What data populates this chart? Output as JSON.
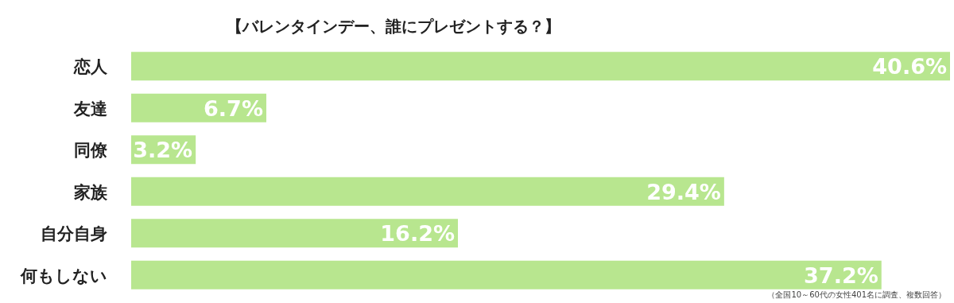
{
  "chart_data": {
    "type": "bar",
    "orientation": "horizontal",
    "title": "【バレンタインデー、誰にプレゼントする？】",
    "categories": [
      "恋人",
      "友達",
      "同僚",
      "家族",
      "自分自身",
      "何もしない"
    ],
    "values": [
      40.6,
      6.7,
      3.2,
      29.4,
      16.2,
      37.2
    ],
    "value_labels": [
      "40.6%",
      "6.7%",
      "3.2%",
      "29.4%",
      "16.2%",
      "37.2%"
    ],
    "color": "#b8e68f",
    "annotations": [
      "（全国10～60代の女性401名に調査、複数回答）"
    ]
  }
}
